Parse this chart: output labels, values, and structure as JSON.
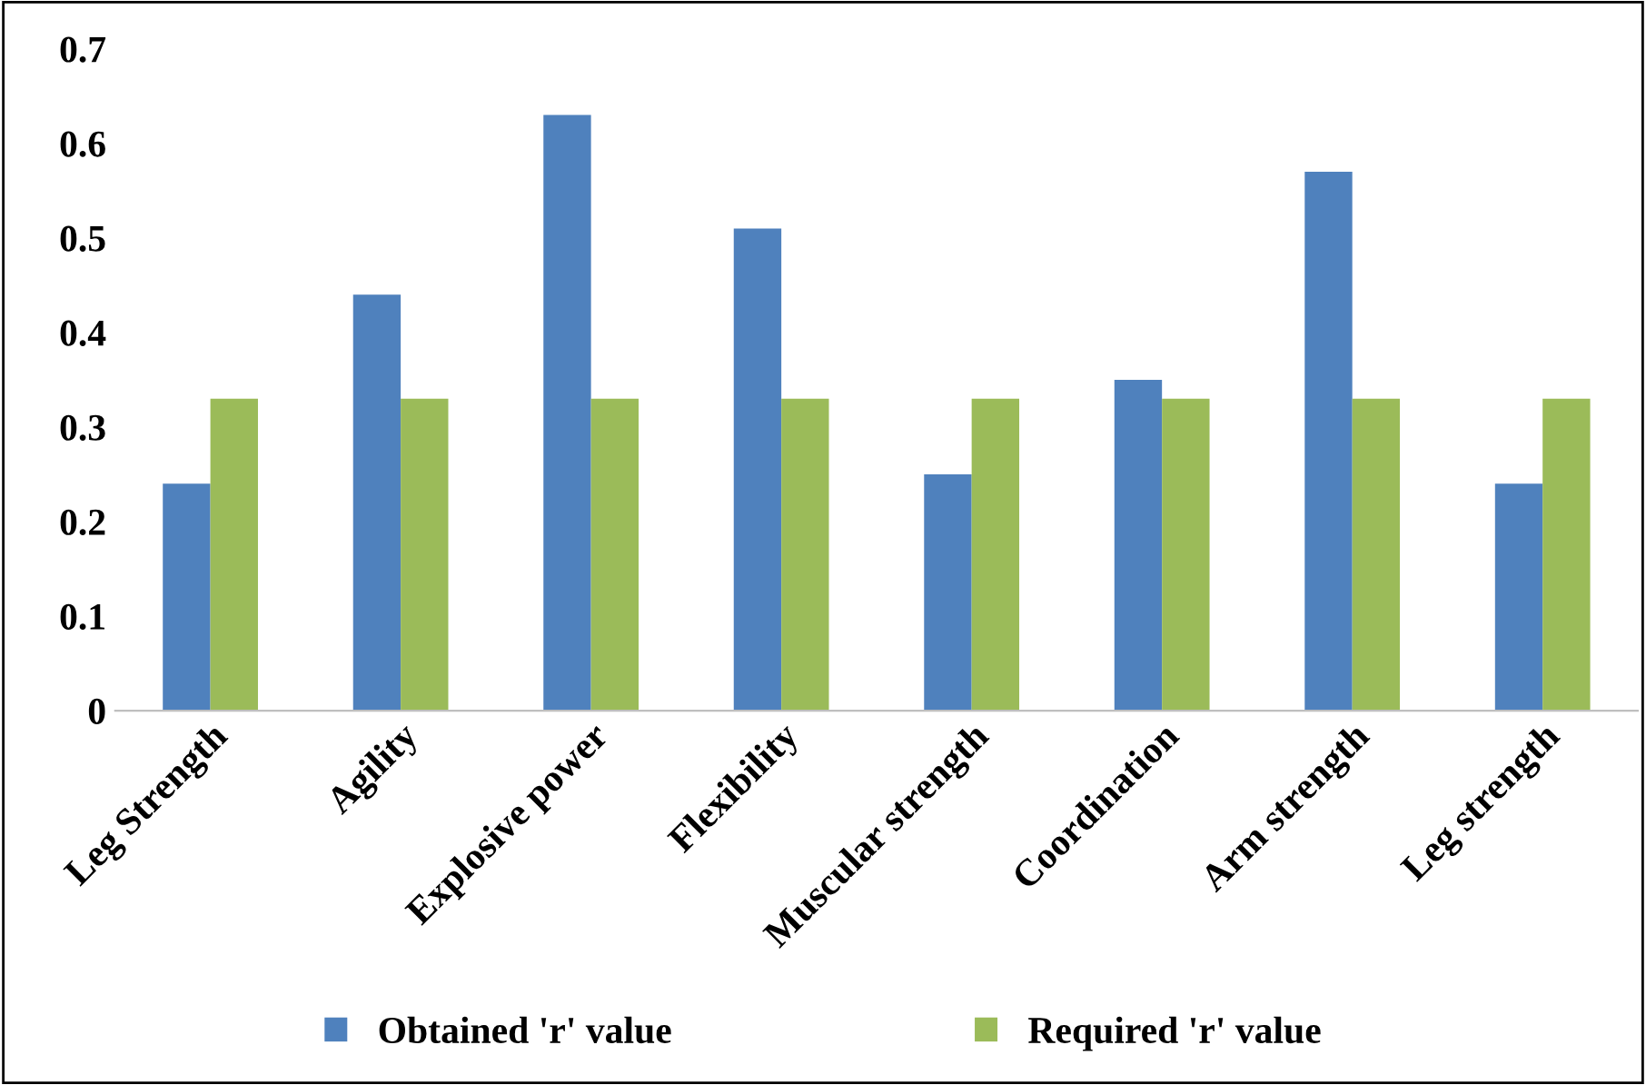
{
  "chart_data": {
    "type": "bar",
    "categories": [
      "Leg Strength",
      "Agility",
      "Explosive power",
      "Flexibility",
      "Muscular strength",
      "Coordination",
      "Arm strength",
      "Leg strength"
    ],
    "series": [
      {
        "name": "Obtained 'r' value",
        "color": "#4f81bd",
        "values": [
          0.24,
          0.44,
          0.63,
          0.51,
          0.25,
          0.35,
          0.57,
          0.24
        ]
      },
      {
        "name": "Required 'r' value",
        "color": "#9bbb59",
        "values": [
          0.33,
          0.33,
          0.33,
          0.33,
          0.33,
          0.33,
          0.33,
          0.33
        ]
      }
    ],
    "ylim": [
      0,
      0.7
    ],
    "yticks": [
      0,
      0.1,
      0.2,
      0.3,
      0.4,
      0.5,
      0.6,
      0.7
    ],
    "grid": false,
    "legend": "bottom"
  }
}
